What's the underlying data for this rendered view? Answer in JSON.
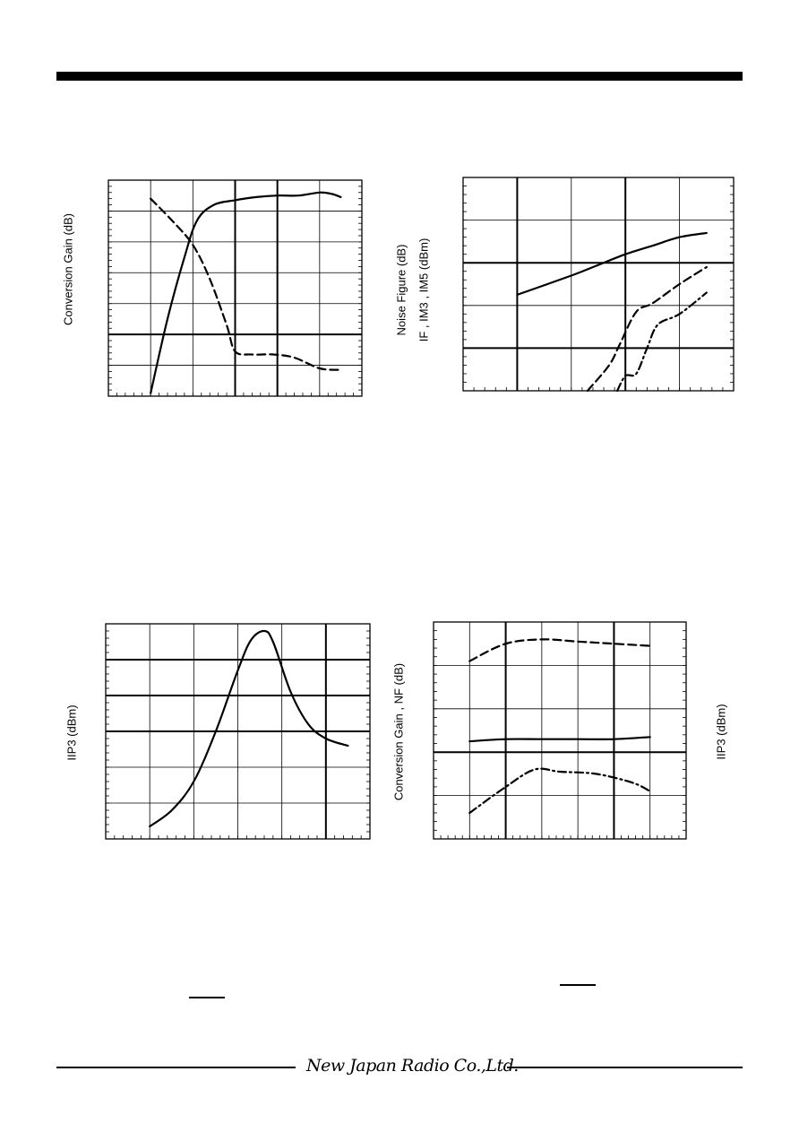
{
  "page": {
    "footer_logo": "New Japan Radio Co.,Ltd."
  },
  "charts": [
    {
      "ylabel_lines": [
        "Conversion Gain (dB)"
      ],
      "right_ylabel": ""
    },
    {
      "ylabel_lines": [
        "Noise Figure (dB)",
        "IF , IM3 , IM5 (dBm)"
      ],
      "right_ylabel": ""
    },
    {
      "ylabel_lines": [
        "IIP3 (dBm)"
      ],
      "right_ylabel": ""
    },
    {
      "ylabel_lines": [
        "Conversion Gain , NF (dB)"
      ],
      "right_ylabel": "IIP3 (dBm)"
    }
  ],
  "chart_data": [
    {
      "type": "line",
      "title": "",
      "xlabel": "",
      "ylabel": "Conversion Gain (dB)",
      "xlim": [
        0,
        6
      ],
      "ylim": [
        0,
        7
      ],
      "grid": true,
      "series": [
        {
          "style": "solid",
          "x": [
            1.0,
            1.4,
            1.8,
            2.1,
            2.5,
            3.0,
            3.5,
            4.0,
            4.5,
            5.0,
            5.3,
            5.5
          ],
          "y": [
            0.1,
            2.5,
            4.5,
            5.7,
            6.2,
            6.35,
            6.45,
            6.5,
            6.5,
            6.6,
            6.55,
            6.45
          ]
        },
        {
          "style": "dashed",
          "x": [
            1.0,
            1.5,
            2.0,
            2.4,
            2.8,
            3.0,
            3.4,
            3.9,
            4.4,
            5.0,
            5.5
          ],
          "y": [
            6.4,
            5.7,
            4.9,
            3.8,
            2.3,
            1.45,
            1.35,
            1.35,
            1.25,
            0.9,
            0.85
          ]
        }
      ]
    },
    {
      "type": "line",
      "title": "",
      "xlabel": "",
      "ylabel": "Noise Figure (dB) / IF , IM3 , IM5 (dBm)",
      "xlim": [
        0,
        5
      ],
      "ylim": [
        0,
        5
      ],
      "grid": true,
      "series": [
        {
          "style": "solid",
          "x": [
            1.0,
            2.0,
            2.5,
            3.0,
            3.5,
            4.0,
            4.5
          ],
          "y": [
            2.25,
            2.7,
            2.95,
            3.2,
            3.4,
            3.6,
            3.7
          ]
        },
        {
          "style": "dashed",
          "x": [
            2.3,
            2.7,
            2.9,
            3.2,
            3.5,
            4.0,
            4.5
          ],
          "y": [
            0.0,
            0.6,
            1.1,
            1.85,
            2.05,
            2.5,
            2.9
          ]
        },
        {
          "style": "dash-dot",
          "x": [
            2.85,
            3.0,
            3.2,
            3.4,
            3.6,
            4.0,
            4.5
          ],
          "y": [
            0.0,
            0.35,
            0.4,
            1.0,
            1.55,
            1.8,
            2.3
          ]
        }
      ]
    },
    {
      "type": "line",
      "title": "",
      "xlabel": "",
      "ylabel": "IIP3 (dBm)",
      "xlim": [
        0,
        6
      ],
      "ylim": [
        0,
        6
      ],
      "grid": true,
      "series": [
        {
          "style": "solid",
          "x": [
            1.0,
            1.5,
            2.0,
            2.5,
            3.0,
            3.3,
            3.6,
            3.8,
            4.2,
            4.6,
            5.0,
            5.5
          ],
          "y": [
            0.35,
            0.8,
            1.6,
            3.0,
            4.7,
            5.55,
            5.8,
            5.5,
            4.1,
            3.2,
            2.8,
            2.6
          ]
        }
      ]
    },
    {
      "type": "line",
      "title": "",
      "xlabel": "",
      "ylabel": "Conversion Gain , NF (dB)",
      "y2label": "IIP3 (dBm)",
      "xlim": [
        0,
        7
      ],
      "ylim": [
        0,
        5
      ],
      "grid": true,
      "series": [
        {
          "style": "dashed",
          "x": [
            1.0,
            2.0,
            3.0,
            4.0,
            5.0,
            6.0
          ],
          "y": [
            4.1,
            4.5,
            4.6,
            4.55,
            4.5,
            4.45
          ]
        },
        {
          "style": "solid",
          "x": [
            1.0,
            2.0,
            3.0,
            4.0,
            5.0,
            6.0
          ],
          "y": [
            2.25,
            2.3,
            2.3,
            2.3,
            2.3,
            2.35
          ]
        },
        {
          "style": "dash-dot",
          "x": [
            1.0,
            2.0,
            2.8,
            3.5,
            4.5,
            5.5,
            6.0
          ],
          "y": [
            0.6,
            1.2,
            1.6,
            1.55,
            1.5,
            1.3,
            1.1
          ]
        }
      ]
    }
  ]
}
